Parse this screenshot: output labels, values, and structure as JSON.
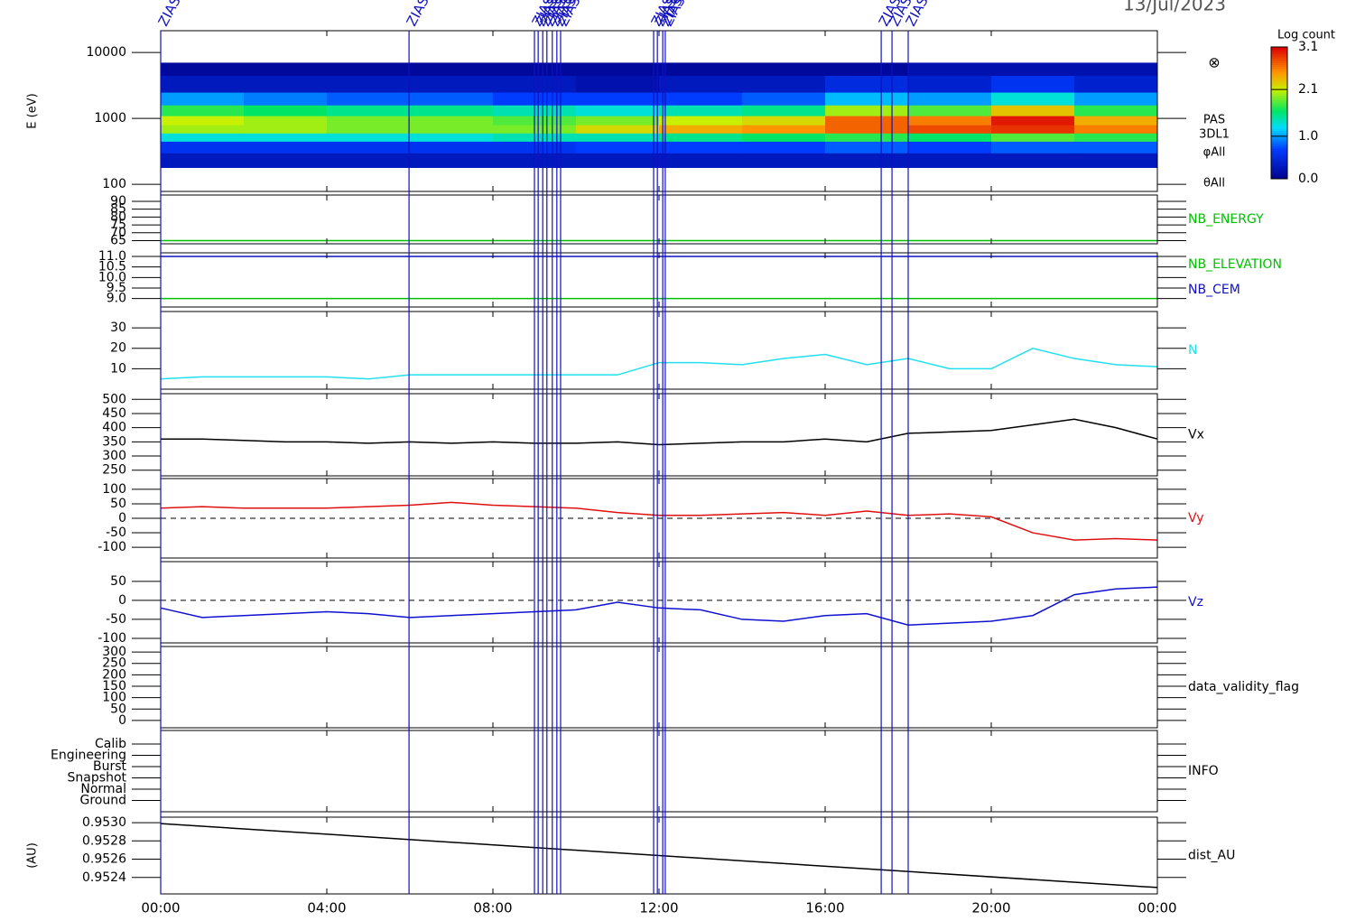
{
  "date": "13/Jul/2023",
  "time_axis": {
    "xlim": [
      0,
      24
    ],
    "xticks": [
      {
        "value": 0,
        "label": "00:00"
      },
      {
        "value": 4,
        "label": "04:00"
      },
      {
        "value": 8,
        "label": "08:00"
      },
      {
        "value": 12,
        "label": "12:00"
      },
      {
        "value": 16,
        "label": "16:00"
      },
      {
        "value": 20,
        "label": "20:00"
      },
      {
        "value": 24,
        "label": "00:00"
      }
    ]
  },
  "event_markers": {
    "label": "ZIAS",
    "color": "#1010c0",
    "x": [
      0.0,
      5.98,
      9.0,
      9.09,
      9.2,
      9.3,
      9.43,
      9.54,
      9.63,
      11.87,
      11.96,
      12.09,
      12.15,
      17.35,
      17.61,
      18.0
    ]
  },
  "chart_data": [
    {
      "type": "heatmap",
      "ylabel": "E (eV)",
      "log_y": true,
      "ylim": [
        78,
        21400
      ],
      "yticks": [
        100,
        1000,
        10000
      ],
      "symbol": "⊗",
      "side_labels": [
        "PAS",
        "3DL1",
        "φAll",
        "θAll"
      ],
      "colorbar": {
        "title": "Log count",
        "zlim": [
          0,
          3.1
        ],
        "ticks": [
          {
            "value": 0,
            "label": "0.0"
          },
          {
            "value": 1,
            "label": "1.0"
          },
          2.1,
          3.1
        ]
      },
      "x_edges": [
        0,
        2,
        4,
        6,
        8,
        10,
        12,
        14,
        16,
        18,
        20,
        22,
        24
      ],
      "y_edges": [
        180,
        300,
        450,
        600,
        800,
        1100,
        1600,
        2500,
        4500,
        7000
      ],
      "z": [
        [
          0.3,
          0.3,
          0.3,
          0.3,
          0.3,
          0.3,
          0.3,
          0.3,
          0.3,
          0.3,
          0.3,
          0.3
        ],
        [
          0.6,
          0.6,
          0.6,
          0.6,
          0.6,
          0.7,
          0.7,
          0.7,
          0.8,
          0.7,
          0.8,
          0.8
        ],
        [
          1.3,
          1.3,
          1.3,
          1.3,
          1.4,
          1.4,
          1.5,
          1.6,
          1.7,
          1.6,
          1.8,
          1.7
        ],
        [
          2.0,
          2.0,
          1.9,
          1.9,
          1.9,
          2.2,
          2.4,
          2.5,
          2.7,
          2.8,
          2.9,
          2.6
        ],
        [
          2.1,
          2.0,
          1.9,
          1.9,
          1.8,
          1.9,
          2.1,
          2.2,
          2.7,
          2.6,
          3.0,
          2.4
        ],
        [
          1.7,
          1.6,
          1.5,
          1.5,
          1.4,
          1.3,
          1.4,
          1.5,
          2.0,
          1.8,
          2.3,
          1.7
        ],
        [
          1.0,
          0.9,
          0.8,
          0.8,
          0.7,
          0.7,
          0.7,
          0.8,
          1.1,
          1.0,
          1.3,
          1.0
        ],
        [
          0.3,
          0.3,
          0.3,
          0.3,
          0.3,
          0.2,
          0.3,
          0.3,
          0.5,
          0.4,
          0.6,
          0.4
        ],
        [
          0.1,
          0.1,
          0.1,
          0.1,
          0.1,
          0.1,
          0.1,
          0.1,
          0.1,
          0.2,
          0.2,
          0.2
        ]
      ]
    },
    {
      "type": "line",
      "ylim": [
        63,
        94
      ],
      "yticks": [
        65,
        70,
        75,
        80,
        85,
        90
      ],
      "x": [
        0,
        24
      ],
      "series": [
        {
          "name": "NB_ENERGY",
          "color": "#00c000",
          "values": [
            65,
            65
          ]
        }
      ]
    },
    {
      "type": "line",
      "ylim": [
        8.6,
        11.17
      ],
      "yticks": [
        {
          "value": 9,
          "label": "9.0"
        },
        9.5,
        {
          "value": 10,
          "label": "10.0"
        },
        10.5,
        {
          "value": 11,
          "label": "11.0"
        }
      ],
      "x": [
        0,
        24
      ],
      "series": [
        {
          "name": "NB_ELEVATION",
          "color": "#00c000",
          "values": [
            9,
            9
          ]
        },
        {
          "name": "NB_CEM",
          "color": "#1010c0",
          "values": [
            11,
            11
          ]
        }
      ]
    },
    {
      "type": "line",
      "ylim": [
        0,
        38
      ],
      "yticks": [
        10,
        20,
        30
      ],
      "x": [
        0,
        1,
        2,
        3,
        4,
        5,
        6,
        7,
        8,
        9,
        10,
        11,
        12,
        13,
        14,
        15,
        16,
        17,
        18,
        19,
        20,
        21,
        22,
        23,
        24
      ],
      "series": [
        {
          "name": "N",
          "color": "#20e0f0",
          "values": [
            5,
            6,
            6,
            6,
            6,
            5,
            7,
            7,
            7,
            7,
            7,
            7,
            13,
            13,
            12,
            15,
            17,
            12,
            15,
            10,
            10,
            20,
            15,
            12,
            11
          ]
        }
      ]
    },
    {
      "type": "line",
      "ylim": [
        230,
        520
      ],
      "yticks": [
        250,
        300,
        350,
        400,
        450,
        500
      ],
      "x": [
        0,
        1,
        2,
        3,
        4,
        5,
        6,
        7,
        8,
        9,
        10,
        11,
        12,
        13,
        14,
        15,
        16,
        17,
        18,
        19,
        20,
        21,
        22,
        23,
        24
      ],
      "series": [
        {
          "name": "Vx",
          "color": "#000000",
          "values": [
            360,
            360,
            355,
            350,
            350,
            345,
            350,
            345,
            350,
            345,
            345,
            350,
            340,
            345,
            350,
            350,
            360,
            350,
            380,
            385,
            390,
            410,
            430,
            400,
            360
          ]
        }
      ]
    },
    {
      "type": "line",
      "ylim": [
        -137,
        137
      ],
      "yticks": [
        -100,
        -50,
        0,
        50,
        100
      ],
      "hline": 0,
      "x": [
        0,
        1,
        2,
        3,
        4,
        5,
        6,
        7,
        8,
        9,
        10,
        11,
        12,
        13,
        14,
        15,
        16,
        17,
        18,
        19,
        20,
        21,
        22,
        23,
        24
      ],
      "series": [
        {
          "name": "Vy",
          "color": "#e01010",
          "values": [
            35,
            40,
            35,
            35,
            35,
            40,
            45,
            55,
            45,
            40,
            35,
            20,
            10,
            10,
            15,
            20,
            10,
            25,
            10,
            15,
            5,
            -50,
            -75,
            -70,
            -75
          ]
        }
      ]
    },
    {
      "type": "line",
      "ylim": [
        -112,
        102
      ],
      "yticks": [
        -100,
        -50,
        0,
        50
      ],
      "hline": 0,
      "x": [
        0,
        1,
        2,
        3,
        4,
        5,
        6,
        7,
        8,
        9,
        10,
        11,
        12,
        13,
        14,
        15,
        16,
        17,
        18,
        19,
        20,
        21,
        22,
        23,
        24
      ],
      "series": [
        {
          "name": "Vz",
          "color": "#1010d0",
          "values": [
            -20,
            -45,
            -40,
            -35,
            -30,
            -35,
            -45,
            -40,
            -35,
            -30,
            -25,
            -5,
            -20,
            -25,
            -50,
            -55,
            -40,
            -35,
            -65,
            -60,
            -55,
            -40,
            15,
            30,
            35
          ]
        }
      ]
    },
    {
      "type": "empty",
      "label": "data_validity_flag",
      "ylim": [
        -32,
        324
      ],
      "yticks": [
        0,
        50,
        100,
        150,
        200,
        250,
        300
      ]
    },
    {
      "type": "category",
      "label": "INFO",
      "ylim": [
        -1,
        6.2
      ],
      "categories": [
        "Ground",
        "Normal",
        "Snapshot",
        "Burst",
        "Engineering",
        "Calib"
      ]
    },
    {
      "type": "line",
      "ylabel": "(AU)",
      "ylim": [
        0.95222,
        0.95306
      ],
      "yticks": [
        0.9524,
        0.9526,
        0.9528,
        {
          "value": 0.953,
          "label": "0.9530"
        }
      ],
      "x": [
        0,
        24
      ],
      "series": [
        {
          "name": "dist_AU",
          "color": "#000000",
          "values": [
            0.95299,
            0.95229
          ]
        }
      ]
    }
  ]
}
